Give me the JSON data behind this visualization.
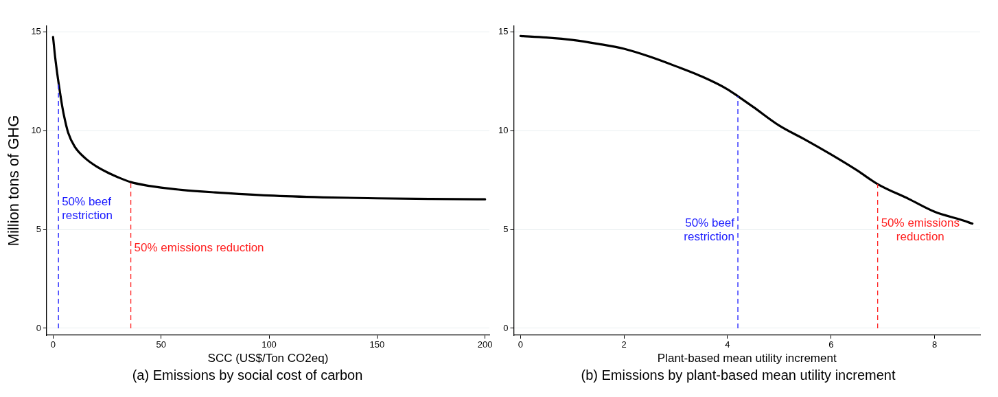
{
  "chart_data": [
    {
      "type": "line",
      "title": "(a) Emissions by social cost of carbon",
      "xlabel": "SCC (US$/Ton CO2eq)",
      "ylabel": "Million tons of GHG",
      "x": [
        0,
        1,
        2,
        3,
        4,
        5,
        7,
        10,
        15,
        20,
        25,
        30,
        36,
        45,
        50,
        60,
        75,
        100,
        125,
        150,
        175,
        200
      ],
      "series": [
        {
          "color": "#000000",
          "values": [
            14.75,
            13.7,
            12.85,
            12.1,
            11.4,
            10.8,
            9.9,
            9.2,
            8.6,
            8.2,
            7.9,
            7.65,
            7.4,
            7.2,
            7.12,
            7.0,
            6.88,
            6.72,
            6.63,
            6.58,
            6.55,
            6.53
          ]
        }
      ],
      "xlim": [
        -3,
        202
      ],
      "xticks": [
        0,
        50,
        100,
        150,
        200
      ],
      "ylim": [
        -0.35,
        15.3
      ],
      "yticks": [
        0,
        5,
        10,
        15
      ],
      "grid": "y",
      "marker": "none",
      "ref_lines": [
        {
          "axis": "x",
          "value": 2.5,
          "label": "50% beef restriction",
          "color": "#1a1aff",
          "line_style": "dashed"
        },
        {
          "axis": "x",
          "value": 36,
          "label": "50% emissions reduction",
          "color": "#ff2020",
          "line_style": "dashed"
        }
      ]
    },
    {
      "type": "line",
      "title": "(b) Emissions by plant-based mean utility increment",
      "xlabel": "Plant-based mean utility increment",
      "x": [
        0,
        0.5,
        1,
        1.5,
        2,
        2.5,
        3,
        3.5,
        4,
        4.2,
        4.5,
        5,
        5.5,
        6,
        6.5,
        6.9,
        7.5,
        8,
        8.5,
        8.73
      ],
      "series": [
        {
          "color": "#000000",
          "values": [
            14.8,
            14.72,
            14.6,
            14.4,
            14.15,
            13.75,
            13.27,
            12.75,
            12.1,
            11.75,
            11.2,
            10.26,
            9.55,
            8.8,
            8.0,
            7.3,
            6.55,
            5.9,
            5.5,
            5.3
          ]
        }
      ],
      "xlim": [
        -0.13,
        8.88
      ],
      "xticks": [
        0,
        2,
        4,
        6,
        8
      ],
      "ylim": [
        -0.35,
        15.3
      ],
      "yticks": [
        0,
        5,
        10,
        15
      ],
      "grid": "y",
      "marker": "none",
      "ref_lines": [
        {
          "axis": "x",
          "value": 4.2,
          "label": "50% beef restriction",
          "color": "#1a1aff",
          "line_style": "dashed"
        },
        {
          "axis": "x",
          "value": 6.9,
          "label": "50% emissions reduction",
          "color": "#ff2020",
          "line_style": "dashed"
        }
      ]
    }
  ]
}
